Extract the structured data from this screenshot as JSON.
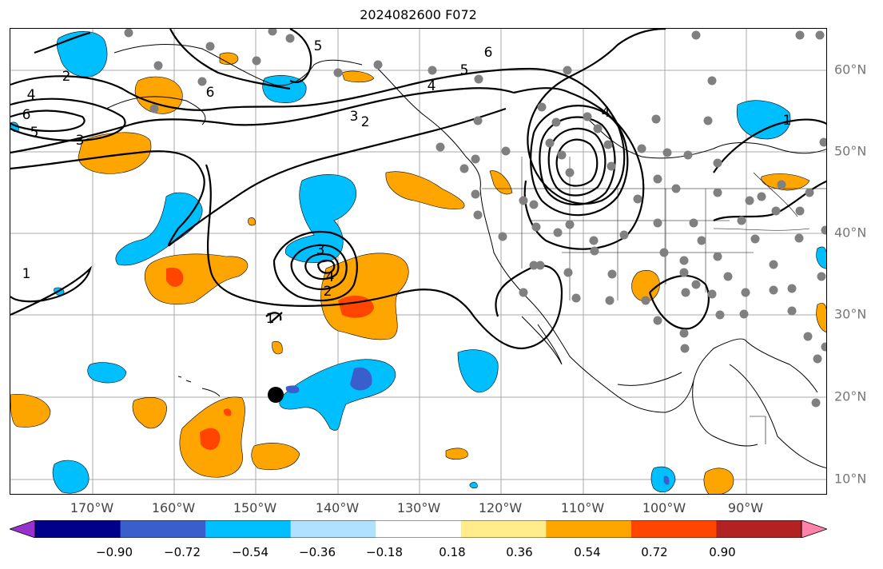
{
  "title": "2024082600 F072",
  "lon_labels": [
    "170°W",
    "160°W",
    "150°W",
    "140°W",
    "130°W",
    "120°W",
    "110°W",
    "100°W",
    "90°W"
  ],
  "lat_labels": [
    "60°N",
    "50°N",
    "40°N",
    "30°N",
    "20°N",
    "10°N"
  ],
  "colorbar": {
    "colors": [
      "#9932cc",
      "#00008b",
      "#3a5fcd",
      "#00bfff",
      "#b0e2ff",
      "#ffffff",
      "#ffec8b",
      "#ffa500",
      "#ff4500",
      "#b22222",
      "#ff82ab"
    ],
    "tick_labels": [
      "−0.90",
      "−0.72",
      "−0.54",
      "−0.36",
      "−0.18",
      "0.18",
      "0.36",
      "0.54",
      "0.72",
      "0.90"
    ]
  },
  "contour_labels": [
    "2",
    "4",
    "6",
    "5",
    "3",
    "5",
    "6",
    "4",
    "3",
    "2",
    "4",
    "5",
    "6",
    "1",
    "1",
    "3",
    "4",
    "2",
    "1"
  ],
  "colors": {
    "positive": "#ffa500",
    "strong_positive": "#ff4500",
    "negative": "#00bfff",
    "strong_negative": "#3a5fcd",
    "station": "#808080"
  },
  "tc_marker": "filled-circle"
}
